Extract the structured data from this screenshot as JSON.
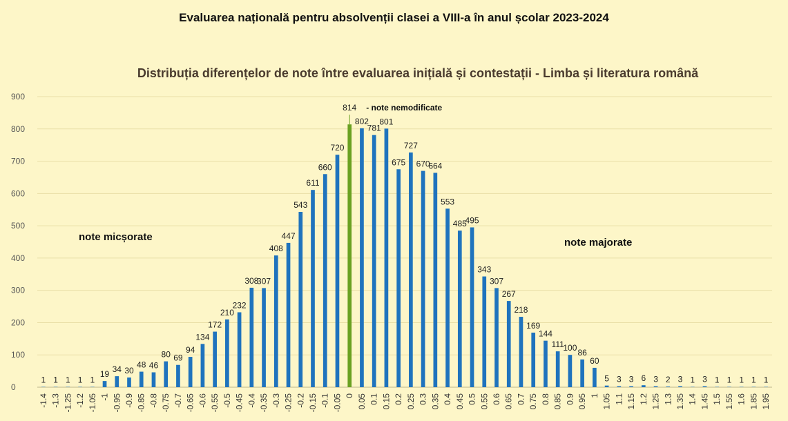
{
  "header": {
    "title": "Evaluarea națională pentru absolvenții clasei a VIII-a în anul școlar 2023-2024"
  },
  "colors": {
    "bar": "#1f73bd",
    "highlight": "#6aa121",
    "grid": "#e9dfa7",
    "background": "#fdf6c8"
  },
  "chart_data": {
    "type": "bar",
    "title": "Distribuția diferențelor de note între evaluarea inițială și contestații - Limba și literatura română",
    "xlabel": "",
    "ylabel": "",
    "ylim": [
      0,
      900
    ],
    "yticks": [
      0,
      100,
      200,
      300,
      400,
      500,
      600,
      700,
      800,
      900
    ],
    "grid": true,
    "categories": [
      "-1.4",
      "-1.3",
      "-1.25",
      "-1.2",
      "-1.05",
      "-1",
      "-0.95",
      "-0.9",
      "-0.85",
      "-0.8",
      "-0.75",
      "-0.7",
      "-0.65",
      "-0.6",
      "-0.55",
      "-0.5",
      "-0.45",
      "-0.4",
      "-0.35",
      "-0.3",
      "-0.25",
      "-0.2",
      "-0.15",
      "-0.1",
      "-0.05",
      "0",
      "0.05",
      "0.1",
      "0.15",
      "0.2",
      "0.25",
      "0.3",
      "0.35",
      "0.4",
      "0.45",
      "0.5",
      "0.55",
      "0.6",
      "0.65",
      "0.7",
      "0.75",
      "0.8",
      "0.85",
      "0.9",
      "0.95",
      "1",
      "1.05",
      "1.1",
      "1.15",
      "1.2",
      "1.25",
      "1.3",
      "1.35",
      "1.4",
      "1.45",
      "1.5",
      "1.55",
      "1.6",
      "1.85",
      "1.95"
    ],
    "values": [
      1,
      1,
      1,
      1,
      1,
      19,
      34,
      30,
      48,
      46,
      80,
      69,
      94,
      134,
      172,
      210,
      232,
      308,
      307,
      408,
      447,
      543,
      611,
      660,
      720,
      814,
      802,
      781,
      801,
      675,
      727,
      670,
      664,
      553,
      485,
      495,
      343,
      307,
      267,
      218,
      169,
      144,
      111,
      100,
      86,
      60,
      5,
      3,
      3,
      6,
      3,
      2,
      3,
      1,
      3,
      1,
      1,
      1,
      1,
      1
    ],
    "highlight_category": "0",
    "annotations": {
      "unchanged": "- note nemodificate",
      "decreased": "note micșorate",
      "increased": "note majorate"
    }
  }
}
